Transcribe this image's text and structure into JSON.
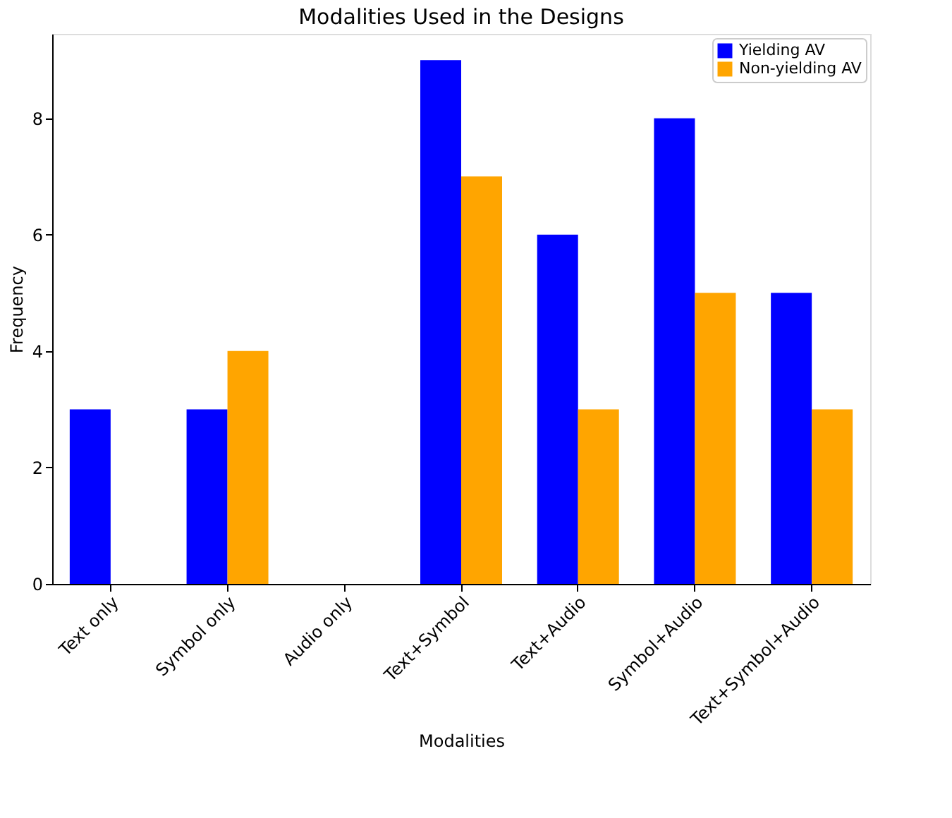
{
  "chart_data": {
    "type": "bar",
    "title": "Modalities Used in the Designs",
    "xlabel": "Modalities",
    "ylabel": "Frequency",
    "categories": [
      "Text only",
      "Symbol only",
      "Audio only",
      "Text+Symbol",
      "Text+Audio",
      "Symbol+Audio",
      "Text+Symbol+Audio"
    ],
    "series": [
      {
        "name": "Yielding AV",
        "color": "#0000ff",
        "values": [
          3,
          3,
          0,
          9,
          6,
          8,
          5
        ]
      },
      {
        "name": "Non-yielding AV",
        "color": "#ffa500",
        "values": [
          0,
          4,
          0,
          7,
          3,
          5,
          3
        ]
      }
    ],
    "ylim": [
      0,
      9.45
    ],
    "yticks": [
      0,
      2,
      4,
      6,
      8
    ],
    "grid": false,
    "legend": "top right"
  }
}
